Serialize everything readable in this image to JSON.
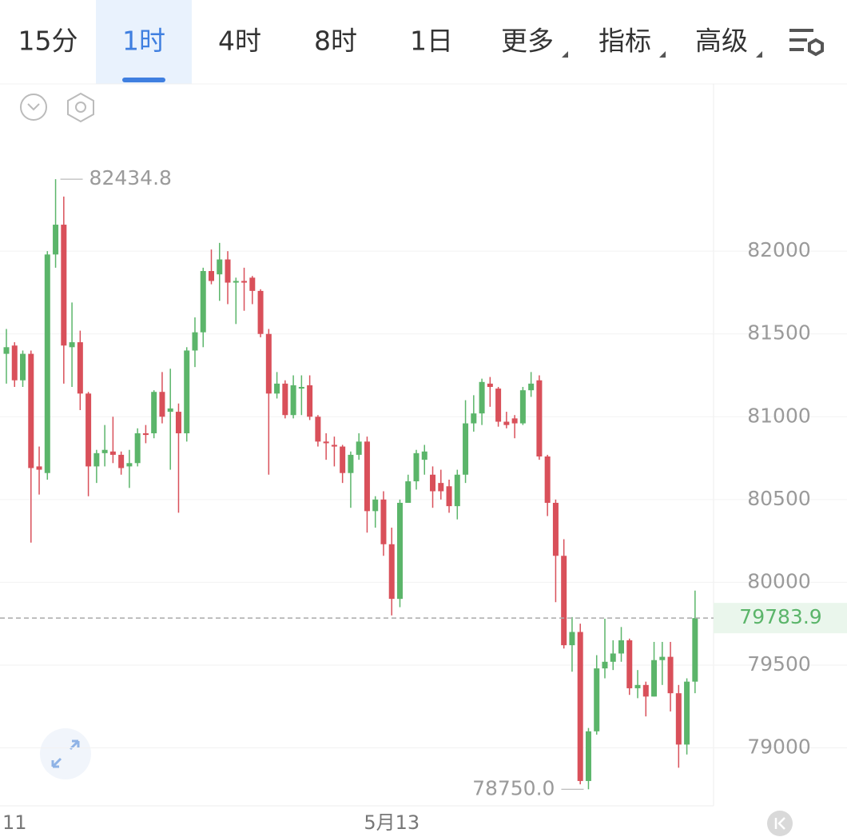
{
  "tabs": [
    "15分",
    "1时",
    "4时",
    "8时",
    "1日",
    "更多",
    "指标",
    "高级"
  ],
  "selected_tab": 1,
  "chart_data": {
    "type": "candlestick",
    "up_color": "#5bb56a",
    "down_color": "#d9505a",
    "ylim": [
      78650,
      83010
    ],
    "yticks": [
      79000,
      79500,
      80000,
      80500,
      81000,
      81500,
      82000
    ],
    "grid": true,
    "current_price": {
      "value": 79783.9,
      "label": "79783.9"
    },
    "high_annotation": {
      "value": 82434.8,
      "label": "82434.8",
      "index": 6
    },
    "low_annotation": {
      "value": 78750,
      "label": "78750.0",
      "index": 71
    },
    "categories": [
      null,
      "11",
      null,
      null,
      null,
      null,
      null,
      null,
      null,
      null,
      null,
      null,
      null,
      null,
      null,
      null,
      null,
      null,
      null,
      null,
      null,
      null,
      null,
      null,
      null,
      null,
      null,
      null,
      null,
      null,
      null,
      null,
      null,
      null,
      null,
      null,
      null,
      null,
      null,
      null,
      null,
      null,
      null,
      null,
      null,
      null,
      null,
      "5月13",
      null,
      null,
      null,
      null,
      null,
      null,
      null,
      null,
      null,
      null,
      null,
      null,
      null,
      null,
      null,
      null,
      null,
      null,
      null,
      null,
      null,
      null,
      null,
      null,
      null,
      null,
      null,
      null,
      null,
      null,
      null,
      null,
      null,
      null,
      null,
      null,
      null
    ],
    "ohlc": [
      [
        81380,
        81530,
        81200,
        81420
      ],
      [
        81430,
        81450,
        81180,
        81220
      ],
      [
        81220,
        81400,
        81180,
        81380
      ],
      [
        81380,
        81400,
        80240,
        80690
      ],
      [
        80700,
        80820,
        80530,
        80680
      ],
      [
        80660,
        82000,
        80620,
        81980
      ],
      [
        81980,
        82434.8,
        81900,
        82160
      ],
      [
        82160,
        82330,
        81200,
        81430
      ],
      [
        81420,
        81690,
        81180,
        81450
      ],
      [
        81450,
        81520,
        81040,
        81140
      ],
      [
        81140,
        81150,
        80520,
        80700
      ],
      [
        80700,
        80800,
        80600,
        80780
      ],
      [
        80780,
        80950,
        80700,
        80800
      ],
      [
        80790,
        81000,
        80720,
        80770
      ],
      [
        80770,
        80790,
        80650,
        80690
      ],
      [
        80700,
        80800,
        80570,
        80720
      ],
      [
        80720,
        80930,
        80700,
        80900
      ],
      [
        80900,
        80950,
        80840,
        80890
      ],
      [
        80900,
        81160,
        80870,
        81150
      ],
      [
        81150,
        81270,
        80960,
        81000
      ],
      [
        81030,
        81290,
        80680,
        81050
      ],
      [
        81030,
        81080,
        80420,
        80900
      ],
      [
        80900,
        81420,
        80850,
        81400
      ],
      [
        81400,
        81600,
        81300,
        81510
      ],
      [
        81510,
        81900,
        81420,
        81880
      ],
      [
        81880,
        82010,
        81800,
        81820
      ],
      [
        81860,
        82050,
        81700,
        81950
      ],
      [
        81950,
        82000,
        81680,
        81810
      ],
      [
        81810,
        81840,
        81560,
        81820
      ],
      [
        81820,
        81900,
        81640,
        81810
      ],
      [
        81840,
        81850,
        81680,
        81760
      ],
      [
        81760,
        81770,
        81480,
        81500
      ],
      [
        81500,
        81530,
        80650,
        81140
      ],
      [
        81140,
        81270,
        81110,
        81200
      ],
      [
        81200,
        81220,
        80990,
        81010
      ],
      [
        81010,
        81250,
        80990,
        81190
      ],
      [
        81170,
        81250,
        81010,
        81180
      ],
      [
        81190,
        81250,
        80980,
        81000
      ],
      [
        81000,
        81010,
        80820,
        80850
      ],
      [
        80850,
        80900,
        80740,
        80840
      ],
      [
        80830,
        80880,
        80700,
        80820
      ],
      [
        80820,
        80830,
        80600,
        80660
      ],
      [
        80660,
        80790,
        80450,
        80770
      ],
      [
        80770,
        80900,
        80740,
        80850
      ],
      [
        80850,
        80880,
        80300,
        80430
      ],
      [
        80430,
        80520,
        80330,
        80500
      ],
      [
        80500,
        80550,
        80160,
        80230
      ],
      [
        80230,
        80330,
        79800,
        79900
      ],
      [
        79900,
        80500,
        79850,
        80480
      ],
      [
        80480,
        80650,
        80480,
        80610
      ],
      [
        80610,
        80800,
        80560,
        80780
      ],
      [
        80740,
        80830,
        80650,
        80790
      ],
      [
        80650,
        80700,
        80450,
        80550
      ],
      [
        80600,
        80680,
        80500,
        80550
      ],
      [
        80580,
        80620,
        80420,
        80460
      ],
      [
        80460,
        80680,
        80380,
        80650
      ],
      [
        80650,
        81100,
        80600,
        80960
      ],
      [
        80960,
        81130,
        80910,
        81020
      ],
      [
        81020,
        81230,
        80950,
        81210
      ],
      [
        81200,
        81240,
        81060,
        81180
      ],
      [
        81170,
        81180,
        80940,
        80970
      ],
      [
        80970,
        81030,
        80930,
        80950
      ],
      [
        80990,
        81010,
        80870,
        80960
      ],
      [
        80960,
        81180,
        80950,
        81160
      ],
      [
        81160,
        81270,
        81120,
        81200
      ],
      [
        81220,
        81250,
        80740,
        80760
      ],
      [
        80760,
        80770,
        80400,
        80480
      ],
      [
        80480,
        80500,
        79880,
        80160
      ],
      [
        80160,
        80260,
        79600,
        79620
      ],
      [
        79620,
        79790,
        79460,
        79700
      ],
      [
        79700,
        79750,
        78780,
        78800
      ],
      [
        78800,
        79120,
        78750,
        79100
      ],
      [
        79100,
        79560,
        79080,
        79480
      ],
      [
        79480,
        79780,
        79420,
        79520
      ],
      [
        79520,
        79650,
        79470,
        79570
      ],
      [
        79570,
        79730,
        79520,
        79650
      ],
      [
        79650,
        79660,
        79320,
        79360
      ],
      [
        79360,
        79470,
        79300,
        79380
      ],
      [
        79380,
        79400,
        79190,
        79310
      ],
      [
        79310,
        79640,
        79310,
        79530
      ],
      [
        79530,
        79640,
        79380,
        79550
      ],
      [
        79550,
        79640,
        79220,
        79330
      ],
      [
        79330,
        79380,
        78880,
        79020
      ],
      [
        79020,
        79420,
        78960,
        79400
      ],
      [
        79400,
        79950,
        79330,
        79783.9
      ]
    ]
  }
}
